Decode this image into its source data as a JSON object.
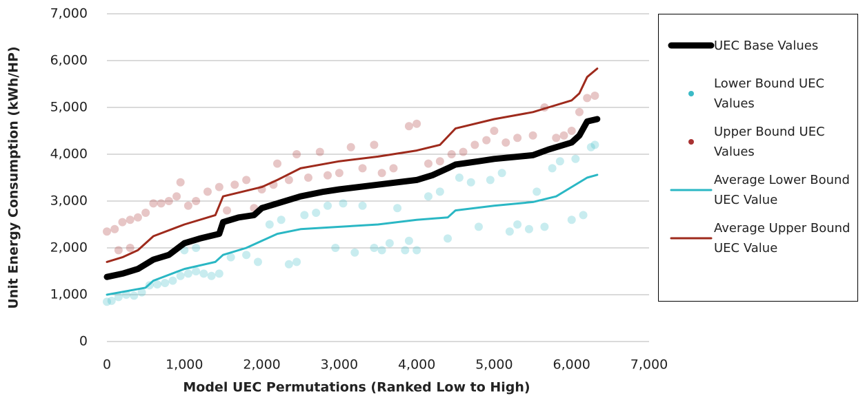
{
  "chart_data": {
    "type": "line",
    "x_label": "Model UEC Permutations (Ranked Low to High)",
    "y_label": "Unit Energy Consumption (kWh/HP)",
    "xlim": [
      0,
      7000
    ],
    "ylim": [
      0,
      7000
    ],
    "xticks": [
      0,
      {
        "value": 1000,
        "label": "1,000"
      },
      {
        "value": 2000,
        "label": "2,000"
      },
      {
        "value": 3000,
        "label": "3,000"
      },
      {
        "value": 4000,
        "label": "4,000"
      },
      {
        "value": 5000,
        "label": "5,000"
      },
      {
        "value": 6000,
        "label": "6,000"
      },
      {
        "value": 7000,
        "label": "7,000"
      }
    ],
    "yticks": [
      0,
      {
        "value": 1000,
        "label": "1,000"
      },
      {
        "value": 2000,
        "label": "2,000"
      },
      {
        "value": 3000,
        "label": "3,000"
      },
      {
        "value": 4000,
        "label": "4,000"
      },
      {
        "value": 5000,
        "label": "5,000"
      },
      {
        "value": 6000,
        "label": "6,000"
      },
      {
        "value": 7000,
        "label": "7,000"
      }
    ],
    "grid": true,
    "legend": "right",
    "series": [
      {
        "name": "UEC Base Values",
        "type": "line",
        "color": "#000000",
        "width": 9,
        "x": [
          0,
          200,
          400,
          600,
          800,
          1000,
          1200,
          1450,
          1500,
          1700,
          1900,
          2000,
          2200,
          2500,
          2800,
          3000,
          3500,
          4000,
          4200,
          4400,
          4500,
          4800,
          5000,
          5500,
          5700,
          6000,
          6100,
          6200,
          6330
        ],
        "values": [
          1380,
          1450,
          1550,
          1750,
          1850,
          2100,
          2200,
          2300,
          2550,
          2650,
          2700,
          2850,
          2950,
          3100,
          3200,
          3250,
          3350,
          3450,
          3550,
          3700,
          3780,
          3850,
          3900,
          3980,
          4100,
          4250,
          4400,
          4700,
          4750
        ]
      },
      {
        "name": "Lower Bound UEC Values",
        "type": "scatter",
        "color": "#3bbac6",
        "x": [
          0,
          60,
          150,
          250,
          350,
          450,
          550,
          650,
          750,
          850,
          950,
          1050,
          1150,
          1250,
          1350,
          1450,
          1000,
          1150,
          1600,
          1800,
          1950,
          2100,
          2250,
          2350,
          2450,
          2550,
          2700,
          2850,
          2950,
          3050,
          3200,
          3300,
          3450,
          3550,
          3650,
          3750,
          3850,
          3900,
          4000,
          4150,
          4300,
          4400,
          4550,
          4700,
          4800,
          4950,
          5100,
          5200,
          5300,
          5450,
          5550,
          5650,
          5750,
          5850,
          6000,
          6050,
          6150,
          6250,
          6300
        ],
        "values": [
          850,
          870,
          950,
          1000,
          980,
          1050,
          1200,
          1220,
          1250,
          1300,
          1400,
          1450,
          1500,
          1450,
          1400,
          1450,
          1950,
          2000,
          1800,
          1850,
          1700,
          2500,
          2600,
          1650,
          1700,
          2700,
          2750,
          2900,
          2000,
          2950,
          1900,
          2900,
          2000,
          1950,
          2100,
          2850,
          1950,
          2150,
          1950,
          3100,
          3200,
          2200,
          3500,
          3400,
          2450,
          3450,
          3600,
          2350,
          2500,
          2400,
          3200,
          2450,
          3700,
          3850,
          2600,
          3900,
          2700,
          4150,
          4200
        ]
      },
      {
        "name": "Upper Bound UEC Values",
        "type": "scatter",
        "color": "#a83232",
        "x": [
          0,
          100,
          200,
          300,
          400,
          500,
          150,
          300,
          600,
          700,
          800,
          900,
          950,
          1050,
          1150,
          1300,
          1450,
          1550,
          1650,
          1800,
          1900,
          2000,
          2150,
          2200,
          2350,
          2450,
          2600,
          2750,
          2850,
          3000,
          3150,
          3300,
          3450,
          3550,
          3700,
          3900,
          4000,
          4150,
          4300,
          4450,
          4600,
          4750,
          4900,
          5000,
          5150,
          5300,
          5500,
          5650,
          5800,
          5900,
          6000,
          6100,
          6200,
          6300
        ],
        "values": [
          2350,
          2400,
          2550,
          2600,
          2650,
          2750,
          1950,
          2000,
          2950,
          2950,
          3000,
          3100,
          3400,
          2900,
          3000,
          3200,
          3300,
          2800,
          3350,
          3450,
          2850,
          3250,
          3350,
          3800,
          3450,
          4000,
          3500,
          4050,
          3550,
          3600,
          4150,
          3700,
          4200,
          3600,
          3700,
          4600,
          4650,
          3800,
          3850,
          4000,
          4050,
          4200,
          4300,
          4500,
          4250,
          4350,
          4400,
          5000,
          4350,
          4400,
          4500,
          4900,
          5200,
          5250
        ]
      },
      {
        "name": "Average Lower Bound UEC Value",
        "type": "line",
        "color": "#2ab7c4",
        "width": 3,
        "x": [
          0,
          500,
          600,
          1000,
          1400,
          1500,
          1800,
          2000,
          2200,
          2500,
          3000,
          3500,
          4000,
          4400,
          4500,
          5000,
          5500,
          5800,
          6000,
          6200,
          6330
        ],
        "values": [
          1000,
          1150,
          1300,
          1550,
          1700,
          1850,
          2000,
          2150,
          2300,
          2400,
          2450,
          2500,
          2600,
          2650,
          2800,
          2900,
          2980,
          3100,
          3300,
          3500,
          3560
        ]
      },
      {
        "name": "Average Upper Bound UEC Value",
        "type": "line",
        "color": "#9e2a1c",
        "width": 3,
        "x": [
          0,
          200,
          400,
          600,
          1000,
          1400,
          1500,
          2000,
          2200,
          2500,
          3000,
          3500,
          4000,
          4300,
          4500,
          5000,
          5500,
          5700,
          6000,
          6100,
          6200,
          6330
        ],
        "values": [
          1700,
          1800,
          1950,
          2250,
          2500,
          2700,
          3100,
          3300,
          3450,
          3700,
          3850,
          3950,
          4080,
          4200,
          4550,
          4750,
          4900,
          5000,
          5150,
          5300,
          5650,
          5830
        ]
      }
    ]
  }
}
